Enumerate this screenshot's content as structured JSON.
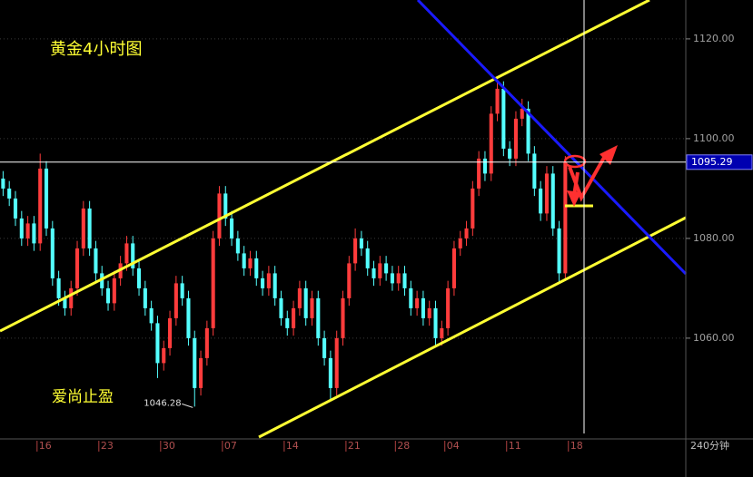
{
  "chart_data": {
    "type": "candlestick",
    "title": "黄金4小时图",
    "subtitle": "爱尚止盈",
    "period_label": "240分钟",
    "up_color": "#ff3c3c",
    "down_color": "#54ffff",
    "xlim": [
      0,
      111
    ],
    "ylim": [
      1039.8,
      1127.8
    ],
    "yticks": [
      {
        "value": 1060,
        "label": "1060.00"
      },
      {
        "value": 1080,
        "label": "1080.00"
      },
      {
        "value": 1100,
        "label": "1100.00"
      },
      {
        "value": 1120,
        "label": "1120.00"
      }
    ],
    "xticks": [
      {
        "value": 6,
        "label": "16"
      },
      {
        "value": 16,
        "label": "23"
      },
      {
        "value": 26,
        "label": "30"
      },
      {
        "value": 36,
        "label": "07"
      },
      {
        "value": 46,
        "label": "14"
      },
      {
        "value": 56,
        "label": "21"
      },
      {
        "value": 64,
        "label": "28"
      },
      {
        "value": 72,
        "label": "04"
      },
      {
        "value": 82,
        "label": "11"
      },
      {
        "value": 92,
        "label": "18"
      }
    ],
    "grid": true,
    "last_price": 1095.29,
    "low_label": 1046.28,
    "candles": [
      [
        1092,
        1093.5,
        1088.5,
        1090
      ],
      [
        1090,
        1091.5,
        1086.5,
        1088
      ],
      [
        1088,
        1089.5,
        1082.5,
        1084
      ],
      [
        1084,
        1085.5,
        1078.5,
        1080
      ],
      [
        1080,
        1084.5,
        1078.5,
        1083
      ],
      [
        1083,
        1084.5,
        1077.5,
        1079
      ],
      [
        1079,
        1097,
        1077.5,
        1094
      ],
      [
        1094,
        1095.5,
        1080.5,
        1082
      ],
      [
        1082,
        1083.5,
        1070.5,
        1072
      ],
      [
        1072,
        1073.5,
        1066.5,
        1068
      ],
      [
        1068,
        1069.5,
        1064.5,
        1066
      ],
      [
        1066,
        1071.5,
        1064.5,
        1070
      ],
      [
        1070,
        1079.5,
        1068.5,
        1078
      ],
      [
        1078,
        1087.5,
        1076.5,
        1086
      ],
      [
        1086,
        1087.5,
        1076.5,
        1078
      ],
      [
        1078,
        1079.5,
        1071.5,
        1073
      ],
      [
        1073,
        1074.5,
        1068.5,
        1070
      ],
      [
        1070,
        1071.5,
        1065.5,
        1067
      ],
      [
        1067,
        1073.5,
        1065.5,
        1072
      ],
      [
        1072,
        1076.5,
        1070.5,
        1075
      ],
      [
        1075,
        1080.5,
        1073.5,
        1079
      ],
      [
        1079,
        1080.5,
        1072.5,
        1074
      ],
      [
        1074,
        1075.5,
        1068.5,
        1070
      ],
      [
        1070,
        1071.5,
        1064.5,
        1066
      ],
      [
        1066,
        1067.5,
        1061.5,
        1063
      ],
      [
        1063,
        1064.5,
        1052,
        1055
      ],
      [
        1055,
        1059.5,
        1053.5,
        1058
      ],
      [
        1058,
        1065.5,
        1056.5,
        1064
      ],
      [
        1064,
        1072.5,
        1062.5,
        1071
      ],
      [
        1071,
        1072.5,
        1066.5,
        1068
      ],
      [
        1068,
        1069.5,
        1058.5,
        1060
      ],
      [
        1060,
        1061.5,
        1046.28,
        1050
      ],
      [
        1050,
        1057.5,
        1048.5,
        1056
      ],
      [
        1056,
        1063.5,
        1054.5,
        1062
      ],
      [
        1062,
        1081.5,
        1060.5,
        1080
      ],
      [
        1080,
        1090.5,
        1078.5,
        1089
      ],
      [
        1089,
        1090.5,
        1082.5,
        1084
      ],
      [
        1084,
        1085.5,
        1078.5,
        1080
      ],
      [
        1080,
        1081.5,
        1075.5,
        1077
      ],
      [
        1077,
        1078.5,
        1072.5,
        1074
      ],
      [
        1074,
        1077.5,
        1072.5,
        1076
      ],
      [
        1076,
        1077.5,
        1070.5,
        1072
      ],
      [
        1072,
        1073.5,
        1068.5,
        1070
      ],
      [
        1070,
        1074.5,
        1068.5,
        1073
      ],
      [
        1073,
        1074.5,
        1066.5,
        1068
      ],
      [
        1068,
        1069.5,
        1062.5,
        1064
      ],
      [
        1064,
        1065.5,
        1060.5,
        1062
      ],
      [
        1062,
        1067.5,
        1060.5,
        1066
      ],
      [
        1066,
        1071.5,
        1064.5,
        1070
      ],
      [
        1070,
        1071.5,
        1062.5,
        1064
      ],
      [
        1064,
        1069.5,
        1062.5,
        1068
      ],
      [
        1068,
        1069.5,
        1058.5,
        1060
      ],
      [
        1060,
        1061.5,
        1054.5,
        1056
      ],
      [
        1056,
        1057.5,
        1047.5,
        1050
      ],
      [
        1050,
        1061.5,
        1048.5,
        1060
      ],
      [
        1060,
        1069.5,
        1058.5,
        1068
      ],
      [
        1068,
        1076.5,
        1066.5,
        1075
      ],
      [
        1075,
        1082,
        1073.5,
        1080
      ],
      [
        1080,
        1081.5,
        1076.5,
        1078
      ],
      [
        1078,
        1079.5,
        1072.5,
        1074
      ],
      [
        1074,
        1075.5,
        1070.5,
        1072
      ],
      [
        1072,
        1076.5,
        1070.5,
        1075
      ],
      [
        1075,
        1076.5,
        1071.5,
        1073
      ],
      [
        1073,
        1074.5,
        1069.5,
        1071
      ],
      [
        1071,
        1074.5,
        1069.5,
        1073
      ],
      [
        1073,
        1074.5,
        1068.5,
        1070
      ],
      [
        1070,
        1071.5,
        1064.5,
        1066
      ],
      [
        1066,
        1069.5,
        1064.5,
        1068
      ],
      [
        1068,
        1069.5,
        1062.5,
        1064
      ],
      [
        1064,
        1067.5,
        1062.5,
        1066
      ],
      [
        1066,
        1067.5,
        1058.5,
        1060
      ],
      [
        1060,
        1063.5,
        1058.5,
        1062
      ],
      [
        1062,
        1071.5,
        1060.5,
        1070
      ],
      [
        1070,
        1079.5,
        1068.5,
        1078
      ],
      [
        1078,
        1081.5,
        1076.5,
        1080
      ],
      [
        1080,
        1083.5,
        1078.5,
        1082
      ],
      [
        1082,
        1091.5,
        1080.5,
        1090
      ],
      [
        1090,
        1097.5,
        1088.5,
        1096
      ],
      [
        1096,
        1097.5,
        1091.5,
        1093
      ],
      [
        1093,
        1106.5,
        1091.5,
        1105
      ],
      [
        1105,
        1111.5,
        1103.5,
        1110
      ],
      [
        1110,
        1111.5,
        1096.5,
        1098
      ],
      [
        1098,
        1099.5,
        1094.5,
        1096
      ],
      [
        1096,
        1105.5,
        1094.5,
        1104
      ],
      [
        1104,
        1108,
        1102.5,
        1106
      ],
      [
        1106,
        1107.5,
        1095.5,
        1097
      ],
      [
        1097,
        1098.5,
        1088.5,
        1090
      ],
      [
        1090,
        1091.5,
        1083.5,
        1085
      ],
      [
        1085,
        1094.5,
        1083.5,
        1093
      ],
      [
        1093,
        1094.5,
        1080.5,
        1082
      ],
      [
        1082,
        1083.5,
        1071,
        1073
      ],
      [
        1073,
        1096.5,
        1071.5,
        1095.29
      ]
    ]
  }
}
